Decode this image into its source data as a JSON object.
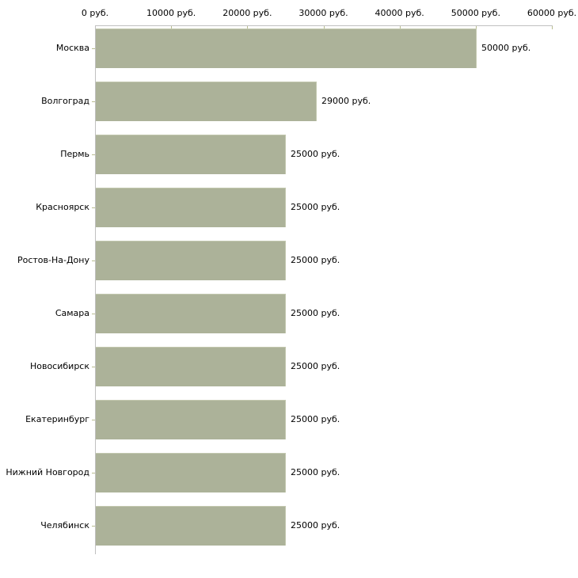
{
  "chart_data": {
    "type": "bar",
    "orientation": "horizontal",
    "unit": "руб.",
    "categories": [
      "Москва",
      "Волгоград",
      "Пермь",
      "Красноярск",
      "Ростов-На-Дону",
      "Самара",
      "Новосибирск",
      "Екатеринбург",
      "Нижний Новгород",
      "Челябинск"
    ],
    "values": [
      50000,
      29000,
      25000,
      25000,
      25000,
      25000,
      25000,
      25000,
      25000,
      25000
    ],
    "value_labels": [
      "50000 руб.",
      "29000 руб.",
      "25000 руб.",
      "25000 руб.",
      "25000 руб.",
      "25000 руб.",
      "25000 руб.",
      "25000 руб.",
      "25000 руб.",
      "25000 руб."
    ],
    "x_ticks": [
      0,
      10000,
      20000,
      30000,
      40000,
      50000,
      60000
    ],
    "x_tick_labels": [
      "0 руб.",
      "10000 руб.",
      "20000 руб.",
      "30000 руб.",
      "40000 руб.",
      "50000 руб.",
      "60000 руб."
    ],
    "xlim": [
      0,
      60000
    ],
    "grid": false,
    "legend": false,
    "colors": {
      "bar": "#acb299",
      "bar_highlight": "#c3c8af",
      "axis": "#c0c0c0",
      "tick": "#b9bd91",
      "text": "#000000",
      "background": "#ffffff"
    }
  }
}
